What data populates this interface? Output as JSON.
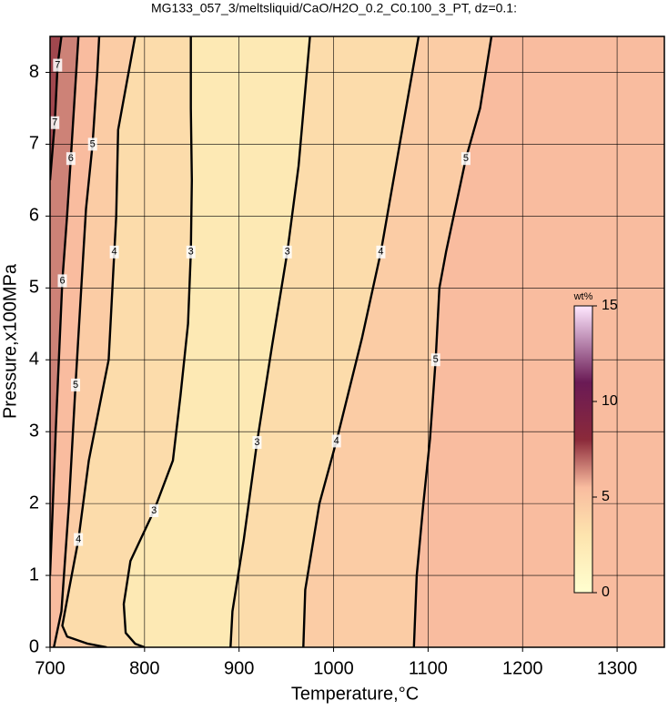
{
  "chart_data": {
    "type": "contour",
    "title": "MG133_057_3/meltsliquid/CaO/H2O_0.2_C0.100_3_PT, dz=0.1:",
    "x_label": "Temperature,°C",
    "y_label": "Pressure,x100MPa",
    "xlim": [
      700,
      1350
    ],
    "ylim": [
      0,
      8.5
    ],
    "xticks": [
      700,
      800,
      900,
      1000,
      1100,
      1200,
      1300
    ],
    "yticks": [
      0,
      1,
      2,
      3,
      4,
      5,
      6,
      7,
      8
    ],
    "grid": true,
    "colorbar_label": "wt%",
    "clim": [
      0,
      15
    ],
    "cticks": [
      0,
      5,
      10,
      15
    ],
    "colormap": [
      {
        "value": 0,
        "color": "#ffffd0"
      },
      {
        "value": 3,
        "color": "#fde4ae"
      },
      {
        "value": 5.5,
        "color": "#f9bc9f"
      },
      {
        "value": 8,
        "color": "#8b2a3a"
      },
      {
        "value": 11,
        "color": "#6a1a55"
      },
      {
        "value": 15,
        "color": "#ffe8ff"
      }
    ],
    "contours": [
      {
        "level": 3,
        "x": [
          800,
          790,
          780,
          778,
          785,
          810,
          830,
          838,
          846,
          849,
          850,
          849,
          849
        ],
        "y": [
          0,
          0.05,
          0.2,
          0.6,
          1.2,
          1.9,
          2.6,
          3.5,
          4.5,
          5.5,
          6.5,
          7.5,
          8.5
        ]
      },
      {
        "level": 3,
        "x": [
          891,
          893,
          905,
          919,
          935,
          951,
          963,
          975
        ],
        "y": [
          0,
          0.5,
          1.5,
          2.85,
          4.2,
          5.5,
          6.7,
          8.5
        ]
      },
      {
        "level": 4,
        "x": [
          760,
          740,
          718,
          713,
          720,
          730,
          741,
          750,
          762,
          768,
          770,
          772,
          790
        ],
        "y": [
          0,
          0.05,
          0.15,
          0.3,
          0.8,
          1.5,
          2.6,
          3.2,
          4,
          5.5,
          6,
          7.2,
          8.5
        ]
      },
      {
        "level": 4,
        "x": [
          968,
          970,
          985,
          1003,
          1030,
          1050,
          1070,
          1090
        ],
        "y": [
          0,
          0.8,
          2,
          2.87,
          4.3,
          5.5,
          7,
          8.5
        ]
      },
      {
        "level": 5,
        "x": [
          704,
          712,
          720,
          727,
          733,
          738,
          745,
          750,
          752
        ],
        "y": [
          0,
          0.5,
          2,
          3.65,
          5,
          6.1,
          7,
          8,
          8.5
        ]
      },
      {
        "level": 5,
        "x": [
          1085,
          1088,
          1095,
          1102,
          1108,
          1112,
          1119,
          1140,
          1155,
          1167
        ],
        "y": [
          0,
          1,
          2,
          2.9,
          4,
          5,
          5.5,
          6.8,
          7.5,
          8.5
        ]
      },
      {
        "level": 6,
        "x": [
          700,
          706,
          713,
          718,
          722,
          730
        ],
        "y": [
          1,
          3,
          5.1,
          6,
          6.8,
          8.5
        ]
      },
      {
        "level": 7,
        "x": [
          700,
          705,
          708,
          712
        ],
        "y": [
          6.5,
          7.3,
          8.1,
          8.5
        ]
      }
    ]
  }
}
